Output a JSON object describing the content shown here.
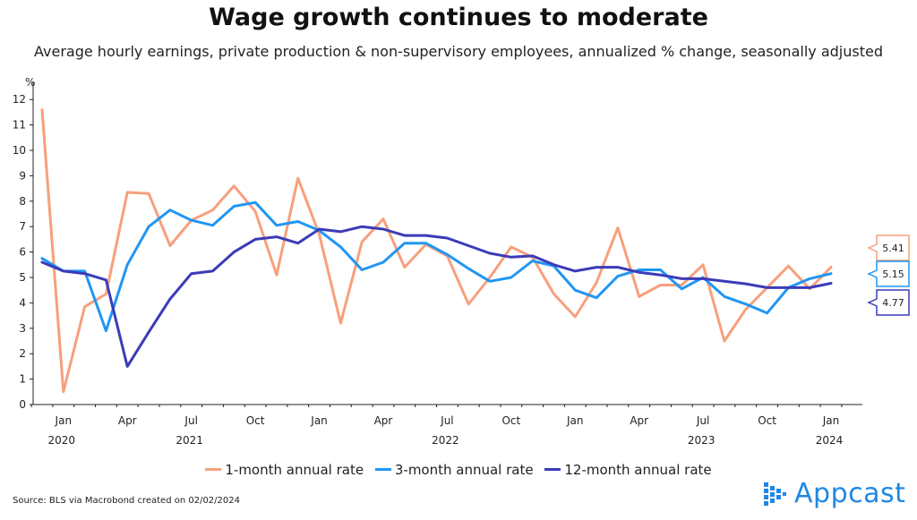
{
  "title": "Wage growth continues to moderate",
  "subtitle": "Average hourly earnings, private production & non-supervisory employees, annualized % change, seasonally adjusted",
  "source": "Source: BLS via Macrobond created on 02/02/2024",
  "brand": {
    "name": "Appcast"
  },
  "chart_data": {
    "type": "line",
    "ylabel": "%",
    "ylim": [
      0,
      12.5
    ],
    "yticks": [
      0,
      1,
      2,
      3,
      4,
      5,
      6,
      7,
      8,
      9,
      10,
      11,
      12
    ],
    "x": [
      "2019-12",
      "2020-01",
      "2020-02",
      "2020-03",
      "2020-04",
      "2020-05",
      "2020-06",
      "2020-07",
      "2020-08",
      "2020-09",
      "2020-10",
      "2020-11",
      "2020-12",
      "2021-01",
      "2021-02",
      "2021-03",
      "2021-04",
      "2021-05",
      "2021-06",
      "2021-07",
      "2021-08",
      "2021-09",
      "2021-10",
      "2021-11",
      "2021-12",
      "2022-01",
      "2022-02",
      "2022-03",
      "2022-04",
      "2022-05",
      "2022-06",
      "2022-07",
      "2022-08",
      "2022-09",
      "2022-10",
      "2022-11",
      "2022-12",
      "2023-01"
    ],
    "xtick_labels": [
      {
        "label": "Jan",
        "year": "2020"
      },
      {
        "label": "Apr",
        "year": ""
      },
      {
        "label": "Jul",
        "year": "2021"
      },
      {
        "label": "Oct",
        "year": ""
      },
      {
        "label": "Jan",
        "year": ""
      },
      {
        "label": "Apr",
        "year": ""
      },
      {
        "label": "Jul",
        "year": "2022"
      },
      {
        "label": "Oct",
        "year": ""
      },
      {
        "label": "Jan",
        "year": ""
      },
      {
        "label": "Apr",
        "year": ""
      },
      {
        "label": "Jul",
        "year": "2023"
      },
      {
        "label": "Oct",
        "year": ""
      },
      {
        "label": "Jan",
        "year": "2024"
      }
    ],
    "series": [
      {
        "name": "1-month annual rate",
        "color": "#f7a07c",
        "values": [
          11.6,
          0.5,
          3.85,
          4.35,
          8.35,
          8.3,
          6.25,
          7.25,
          7.65,
          8.6,
          7.6,
          5.1,
          8.9,
          6.7,
          3.2,
          6.4,
          7.3,
          5.4,
          6.3,
          5.85,
          3.95,
          5.0,
          6.2,
          5.8,
          4.35,
          3.45,
          4.8,
          6.95,
          4.25,
          4.7,
          4.7,
          5.5,
          2.5,
          3.75,
          4.6,
          5.45,
          4.55,
          5.41
        ],
        "end_label": "5.41"
      },
      {
        "name": "3-month annual rate",
        "color": "#2196f3",
        "values": [
          5.75,
          5.25,
          5.25,
          2.9,
          5.5,
          7.0,
          7.65,
          7.25,
          7.05,
          7.8,
          7.95,
          7.05,
          7.2,
          6.85,
          6.2,
          5.3,
          5.6,
          6.35,
          6.35,
          5.9,
          5.35,
          4.85,
          5.0,
          5.65,
          5.45,
          4.5,
          4.2,
          5.05,
          5.3,
          5.3,
          4.55,
          5.0,
          4.25,
          3.95,
          3.6,
          4.6,
          4.95,
          5.15
        ],
        "end_label": "5.15"
      },
      {
        "name": "12-month annual rate",
        "color": "#3b3bb8",
        "values": [
          5.6,
          5.25,
          5.15,
          4.9,
          1.5,
          2.85,
          4.15,
          5.15,
          5.25,
          6.0,
          6.5,
          6.6,
          6.35,
          6.9,
          6.8,
          7.0,
          6.9,
          6.65,
          6.65,
          6.55,
          6.25,
          5.95,
          5.8,
          5.85,
          5.5,
          5.25,
          5.4,
          5.4,
          5.2,
          5.1,
          4.95,
          4.95,
          4.85,
          4.75,
          4.6,
          4.6,
          4.6,
          4.77
        ],
        "end_label": "4.77"
      }
    ],
    "grid": false,
    "legend_position": "bottom-center"
  }
}
